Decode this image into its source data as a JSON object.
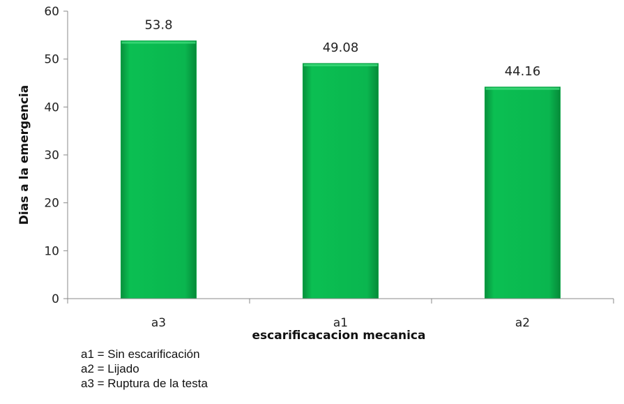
{
  "chart_data": {
    "type": "bar",
    "categories": [
      "a3",
      "a1",
      "a2"
    ],
    "values": [
      53.8,
      49.08,
      44.16
    ],
    "data_labels": [
      "53.8",
      "49.08",
      "44.16"
    ],
    "title": "",
    "xlabel": "escarificacacion mecanica",
    "ylabel": "Dias a la emergencia",
    "ylim": [
      0,
      60
    ],
    "yticks": [
      "0",
      "10",
      "20",
      "30",
      "40",
      "50",
      "60"
    ],
    "bar_color": "#0ab64f",
    "grid": false,
    "legend": "none"
  },
  "notes": [
    "a1 = Sin escarificación",
    "a2 = Lijado",
    "a3 = Ruptura de la testa"
  ]
}
